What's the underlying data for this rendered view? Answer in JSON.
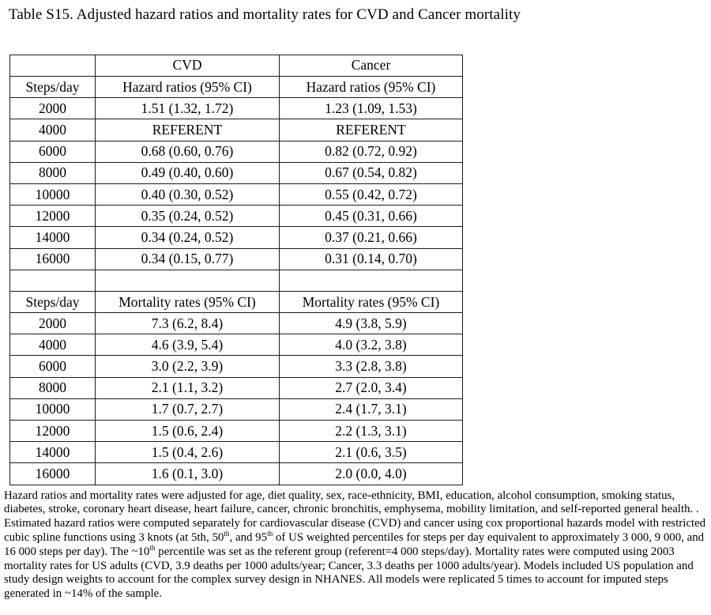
{
  "title": "Table S15. Adjusted hazard ratios and mortality rates for CVD and Cancer mortality",
  "table": {
    "top_header": [
      "",
      "CVD",
      "Cancer"
    ],
    "sections": [
      {
        "spacer_before": false,
        "header": [
          "Steps/day",
          "Hazard ratios (95% CI)",
          "Hazard ratios (95% CI)"
        ],
        "rows": [
          [
            "2000",
            "1.51 (1.32, 1.72)",
            "1.23 (1.09, 1.53)"
          ],
          [
            "4000",
            "REFERENT",
            "REFERENT"
          ],
          [
            "6000",
            "0.68 (0.60, 0.76)",
            "0.82 (0.72, 0.92)"
          ],
          [
            "8000",
            "0.49 (0.40, 0.60)",
            "0.67 (0.54, 0.82)"
          ],
          [
            "10000",
            "0.40 (0.30, 0.52)",
            "0.55 (0.42, 0.72)"
          ],
          [
            "12000",
            "0.35 (0.24, 0.52)",
            "0.45 (0.31, 0.66)"
          ],
          [
            "14000",
            "0.34 (0.24, 0.52)",
            "0.37 (0.21, 0.66)"
          ],
          [
            "16000",
            "0.34 (0.15, 0.77)",
            "0.31 (0.14, 0.70)"
          ]
        ]
      },
      {
        "spacer_before": true,
        "header": [
          "Steps/day",
          "Mortality rates (95% CI)",
          "Mortality rates (95% CI)"
        ],
        "rows": [
          [
            "2000",
            "7.3 (6.2, 8.4)",
            "4.9 (3.8, 5.9)"
          ],
          [
            "4000",
            "4.6 (3.9, 5.4)",
            "4.0 (3.2, 3.8)"
          ],
          [
            "6000",
            "3.0 (2.2, 3.9)",
            "3.3 (2.8, 3.8)"
          ],
          [
            "8000",
            "2.1 (1.1, 3.2)",
            "2.7 (2.0, 3.4)"
          ],
          [
            "10000",
            "1.7 (0.7, 2.7)",
            "2.4 (1.7, 3.1)"
          ],
          [
            "12000",
            "1.5 (0.6, 2.4)",
            "2.2 (1.3, 3.1)"
          ],
          [
            "14000",
            "1.5 (0.4, 2.6)",
            "2.1 (0.6, 3.5)"
          ],
          [
            "16000",
            "1.6 (0.1, 3.0)",
            "2.0 (0.0, 4.0)"
          ]
        ]
      }
    ]
  },
  "footnote": {
    "segments": [
      {
        "text": "Hazard ratios and mortality rates were adjusted for age, diet quality, sex, race-ethnicity, BMI, education, alcohol consumption, smoking status, diabetes, stroke, coronary heart disease, heart failure, cancer, chronic bronchitis, emphysema, mobility limitation, and self-reported general health. . Estimated hazard ratios were computed separately for cardiovascular disease (CVD) and cancer using cox proportional hazards model with restricted cubic spline functions using 3 knots (at 5th, 50",
        "sup": false
      },
      {
        "text": "th",
        "sup": true
      },
      {
        "text": ", and 95",
        "sup": false
      },
      {
        "text": "th",
        "sup": true
      },
      {
        "text": " of US weighted percentiles for steps per day equivalent to approximately 3 000, 9 000, and 16 000 steps per day). The ~10",
        "sup": false
      },
      {
        "text": "th",
        "sup": true
      },
      {
        "text": " percentile was set as the referent group (referent=4 000 steps/day). Mortality rates were computed using 2003 mortality rates for US adults (CVD, 3.9 deaths per 1000 adults/year; Cancer, 3.3 deaths per 1000 adults/year). Models included US population and study design weights to account for the complex survey design in NHANES. All models were replicated 5 times to account for imputed steps generated in ~14% of the sample.",
        "sup": false
      }
    ]
  }
}
